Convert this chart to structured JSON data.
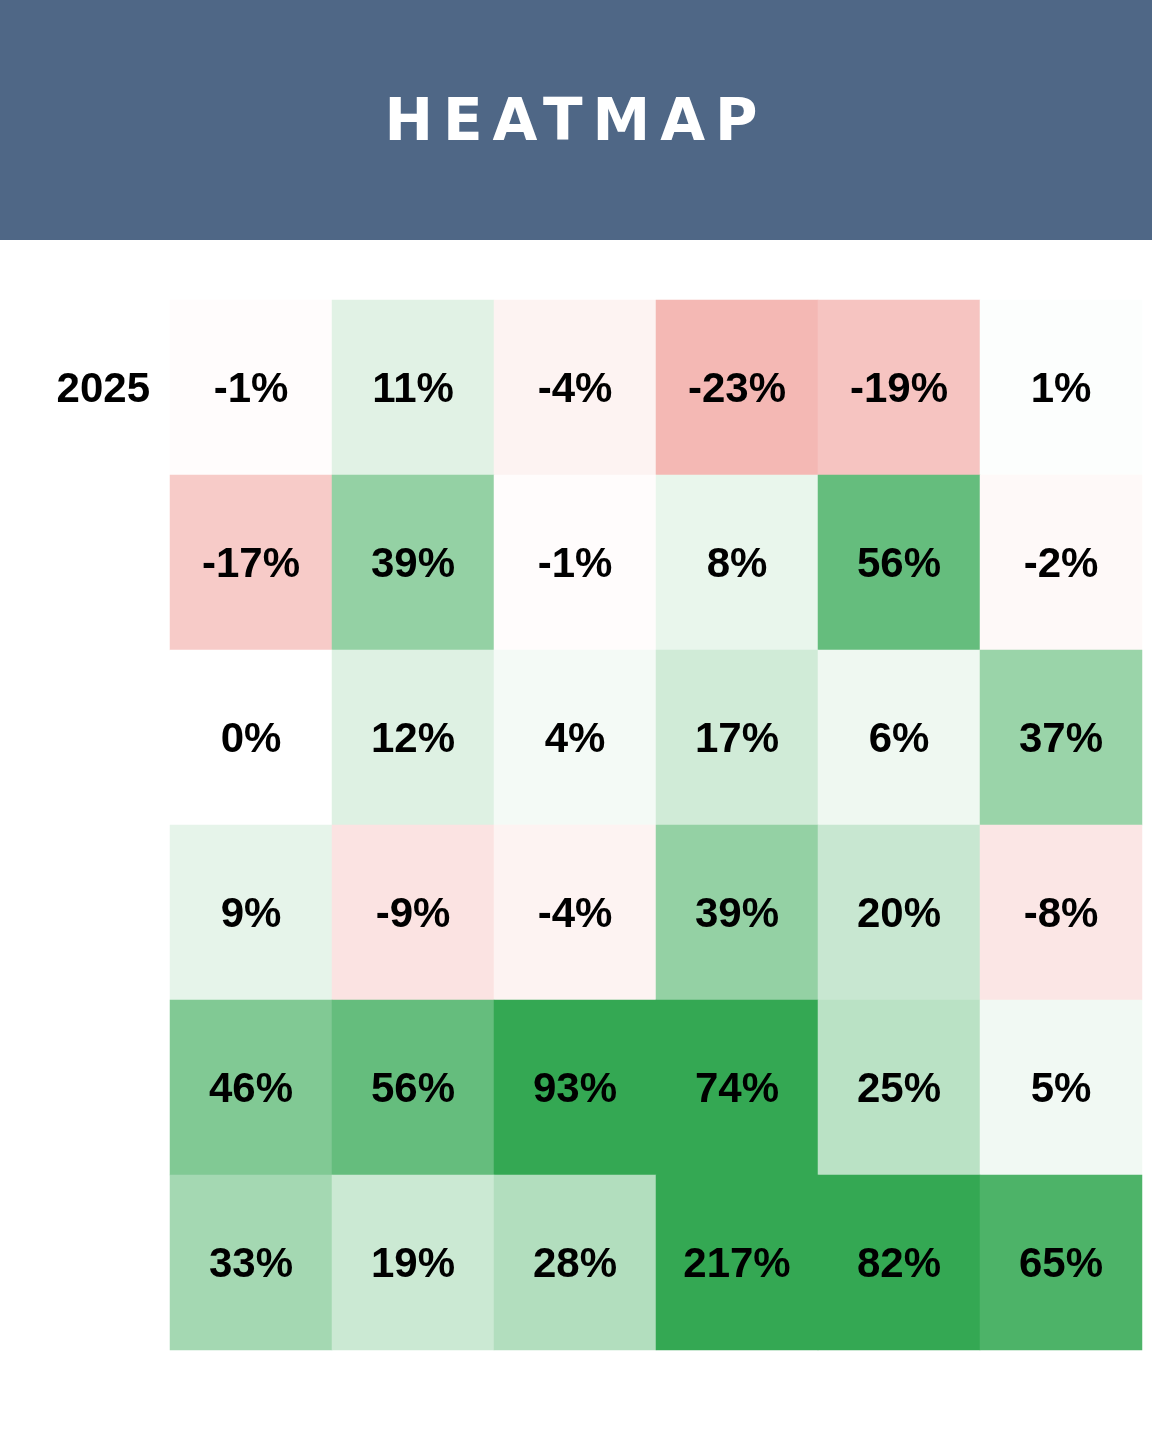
{
  "chart_data": {
    "type": "heatmap",
    "title": "HEATMAP",
    "categories": [
      null,
      null,
      null,
      null,
      null,
      null
    ],
    "y_categories": [
      "2025",
      null,
      null,
      null,
      null,
      null
    ],
    "cells": [
      [
        -1,
        11,
        -4,
        -23,
        -19,
        1
      ],
      [
        -17,
        39,
        -1,
        8,
        56,
        -2
      ],
      [
        0,
        12,
        4,
        17,
        6,
        37
      ],
      [
        9,
        -9,
        -4,
        39,
        20,
        -8
      ],
      [
        46,
        56,
        93,
        74,
        25,
        5
      ],
      [
        33,
        19,
        28,
        217,
        82,
        65
      ]
    ],
    "cell_labels": [
      [
        "-1%",
        "11%",
        "-4%",
        "-23%",
        "-19%",
        "1%"
      ],
      [
        "-17%",
        "39%",
        "-1%",
        "8%",
        "56%",
        "-2%"
      ],
      [
        "0%",
        "12%",
        "4%",
        "17%",
        "6%",
        "37%"
      ],
      [
        "9%",
        "-9%",
        "-4%",
        "39%",
        "20%",
        "-8%"
      ],
      [
        "46%",
        "56%",
        "93%",
        "74%",
        "25%",
        "5%"
      ],
      [
        "33%",
        "19%",
        "28%",
        "217%",
        "82%",
        "65%"
      ]
    ],
    "colors": [
      "#f4b8b4",
      "#ffffff",
      "#34a853"
    ]
  }
}
